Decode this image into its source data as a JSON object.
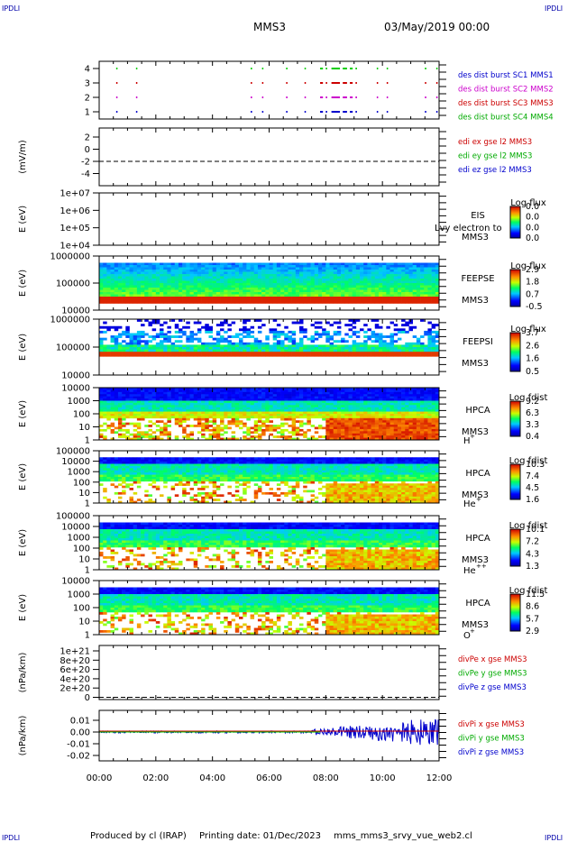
{
  "corner_label": "IPDLI",
  "header": {
    "spacecraft": "MMS3",
    "date": "03/May/2019 00:00"
  },
  "footer": {
    "produced_by": "Produced by cl (IRAP)",
    "printing_date": "Printing date: 01/Dec/2023",
    "filename": "mms_mms3_srvy_vue_web2.cl"
  },
  "time_axis": {
    "start": "00:00",
    "end": "12:00",
    "ticks": [
      "00:00",
      "02:00",
      "04:00",
      "06:00",
      "08:00",
      "10:00",
      "12:00"
    ]
  },
  "colors": {
    "blue": "#0000cc",
    "magenta": "#cc00cc",
    "red": "#cc0000",
    "green": "#00cc00",
    "legend_green": "#00aa00"
  },
  "chart_data": [
    {
      "type": "scatter",
      "ylabel": "",
      "ylim": [
        0.5,
        4.5
      ],
      "yticks": [
        "4",
        "3",
        "2",
        "1"
      ],
      "legend": [
        {
          "label": "des dist burst SC1 MMS1",
          "color": "#0000cc"
        },
        {
          "label": "des dist burst SC2 MMS2",
          "color": "#cc00cc"
        },
        {
          "label": "des dist burst SC3 MMS3",
          "color": "#cc0000"
        },
        {
          "label": "des dist burst SC4 MMS4",
          "color": "#00aa00"
        }
      ],
      "series": [
        {
          "level": 4,
          "color": "#00cc00",
          "intervals": [
            [
              0.6,
              0.62
            ],
            [
              1.3,
              1.32
            ],
            [
              5.35,
              5.37
            ],
            [
              5.75,
              5.77
            ],
            [
              6.6,
              6.62
            ],
            [
              7.25,
              7.28
            ],
            [
              7.8,
              7.9
            ],
            [
              8.0,
              8.05
            ],
            [
              8.2,
              8.5
            ],
            [
              8.6,
              8.75
            ],
            [
              8.85,
              8.95
            ],
            [
              9.05,
              9.1
            ],
            [
              9.8,
              9.82
            ],
            [
              10.15,
              10.17
            ],
            [
              11.5,
              11.52
            ],
            [
              11.9,
              11.92
            ]
          ]
        },
        {
          "level": 3,
          "color": "#cc0000",
          "intervals": [
            [
              0.6,
              0.62
            ],
            [
              1.3,
              1.32
            ],
            [
              5.35,
              5.37
            ],
            [
              5.75,
              5.77
            ],
            [
              6.6,
              6.62
            ],
            [
              7.25,
              7.28
            ],
            [
              7.8,
              7.9
            ],
            [
              8.0,
              8.05
            ],
            [
              8.2,
              8.5
            ],
            [
              8.6,
              8.75
            ],
            [
              8.85,
              8.95
            ],
            [
              9.05,
              9.1
            ],
            [
              9.8,
              9.82
            ],
            [
              10.15,
              10.17
            ],
            [
              11.5,
              11.52
            ],
            [
              11.9,
              11.92
            ]
          ]
        },
        {
          "level": 2,
          "color": "#cc00cc",
          "intervals": [
            [
              0.6,
              0.62
            ],
            [
              1.3,
              1.32
            ],
            [
              5.35,
              5.37
            ],
            [
              5.75,
              5.77
            ],
            [
              6.6,
              6.62
            ],
            [
              7.25,
              7.28
            ],
            [
              7.8,
              7.9
            ],
            [
              8.0,
              8.05
            ],
            [
              8.2,
              8.5
            ],
            [
              8.6,
              8.75
            ],
            [
              8.85,
              8.95
            ],
            [
              9.05,
              9.1
            ],
            [
              9.8,
              9.82
            ],
            [
              10.15,
              10.17
            ],
            [
              11.5,
              11.52
            ],
            [
              11.9,
              11.92
            ]
          ]
        },
        {
          "level": 1,
          "color": "#0000cc",
          "intervals": [
            [
              0.6,
              0.62
            ],
            [
              1.3,
              1.32
            ],
            [
              5.35,
              5.37
            ],
            [
              5.75,
              5.77
            ],
            [
              6.6,
              6.62
            ],
            [
              7.25,
              7.28
            ],
            [
              7.8,
              7.9
            ],
            [
              8.0,
              8.05
            ],
            [
              8.2,
              8.5
            ],
            [
              8.6,
              8.75
            ],
            [
              8.85,
              8.95
            ],
            [
              9.05,
              9.1
            ],
            [
              9.8,
              9.82
            ],
            [
              10.15,
              10.17
            ],
            [
              11.5,
              11.52
            ],
            [
              11.9,
              11.92
            ]
          ]
        }
      ]
    },
    {
      "type": "line",
      "ylabel": "(mV/m)",
      "ylim": [
        -5,
        3
      ],
      "yticks": [
        "2",
        "0",
        "-2",
        "-4"
      ],
      "legend": [
        {
          "label": "edi ex gse l2 MMS3",
          "color": "#cc0000"
        },
        {
          "label": "edi ey gse l2 MMS3",
          "color": "#00aa00"
        },
        {
          "label": "edi ez gse l2 MMS3",
          "color": "#0000cc"
        }
      ],
      "zero_line": true
    },
    {
      "type": "heatmap",
      "ylabel": "E (eV)",
      "yticks": [
        "1e+07",
        "1e+06",
        "1e+05",
        "1e+04"
      ],
      "instrument": "EIS",
      "spacecraft": "MMS3",
      "overlay_text": "Lvy electron to",
      "colorbar": {
        "title": "Log flux",
        "ticks": [
          "0.0",
          "0.0",
          "0.0",
          "0.0"
        ]
      },
      "empty": true
    },
    {
      "type": "heatmap",
      "ylabel": "E (eV)",
      "yticks": [
        "1000000",
        "100000",
        "10000"
      ],
      "instrument": "FEEPSE",
      "spacecraft": "MMS3",
      "colorbar": {
        "title": "Log flux",
        "ticks": [
          "2.9",
          "1.8",
          "0.7",
          "-0.5"
        ]
      }
    },
    {
      "type": "heatmap",
      "ylabel": "E (eV)",
      "yticks": [
        "1000000",
        "100000",
        "10000"
      ],
      "instrument": "FEEPSI",
      "spacecraft": "MMS3",
      "colorbar": {
        "title": "Log flux",
        "ticks": [
          "3.7",
          "2.6",
          "1.6",
          "0.5"
        ]
      }
    },
    {
      "type": "heatmap",
      "ylabel": "E (eV)",
      "yticks": [
        "10000",
        "1000",
        "100",
        "10",
        "1"
      ],
      "instrument": "HPCA",
      "spacecraft": "MMS3",
      "species": "H",
      "charge": "+",
      "colorbar": {
        "title": "Log fdist",
        "ticks": [
          "9.2",
          "6.3",
          "3.3",
          "0.4"
        ]
      }
    },
    {
      "type": "heatmap",
      "ylabel": "E (eV)",
      "yticks": [
        "100000",
        "10000",
        "1000",
        "100",
        "10",
        "1"
      ],
      "instrument": "HPCA",
      "spacecraft": "MMS3",
      "species": "He",
      "charge": "+",
      "colorbar": {
        "title": "Log fdist",
        "ticks": [
          "10.3",
          "7.4",
          "4.5",
          "1.6"
        ]
      }
    },
    {
      "type": "heatmap",
      "ylabel": "E (eV)",
      "yticks": [
        "100000",
        "10000",
        "1000",
        "100",
        "10",
        "1"
      ],
      "instrument": "HPCA",
      "spacecraft": "MMS3",
      "species": "He",
      "charge": "++",
      "colorbar": {
        "title": "Log fdist",
        "ticks": [
          "10.1",
          "7.2",
          "4.3",
          "1.3"
        ]
      }
    },
    {
      "type": "heatmap",
      "ylabel": "E (eV)",
      "yticks": [
        "10000",
        "1000",
        "100",
        "10",
        "1"
      ],
      "instrument": "HPCA",
      "spacecraft": "MMS3",
      "species": "O",
      "charge": "+",
      "colorbar": {
        "title": "Log fdist",
        "ticks": [
          "11.5",
          "8.6",
          "5.7",
          "2.9"
        ]
      }
    },
    {
      "type": "line",
      "ylabel": "(nPa/km)",
      "ylim": [
        -1e+20,
        1.1e+21
      ],
      "yticks": [
        "1e+21",
        "8e+20",
        "6e+20",
        "4e+20",
        "2e+20",
        "0"
      ],
      "legend": [
        {
          "label": "divPe x gse MMS3",
          "color": "#cc0000"
        },
        {
          "label": "divPe y gse MMS3",
          "color": "#00aa00"
        },
        {
          "label": "divPe z gse MMS3",
          "color": "#0000cc"
        }
      ],
      "zero_line": true
    },
    {
      "type": "line",
      "ylabel": "(nPa/km)",
      "ylim": [
        -0.025,
        0.015
      ],
      "yticks": [
        "0.01",
        "0.00",
        "-0.01",
        "-0.02"
      ],
      "legend": [
        {
          "label": "divPi x gse MMS3",
          "color": "#cc0000"
        },
        {
          "label": "divPi y gse MMS3",
          "color": "#00aa00"
        },
        {
          "label": "divPi z gse MMS3",
          "color": "#0000cc"
        }
      ],
      "series_note": "z component near 0.00 with amplitude growing to about ±0.01 after 07:30"
    }
  ]
}
